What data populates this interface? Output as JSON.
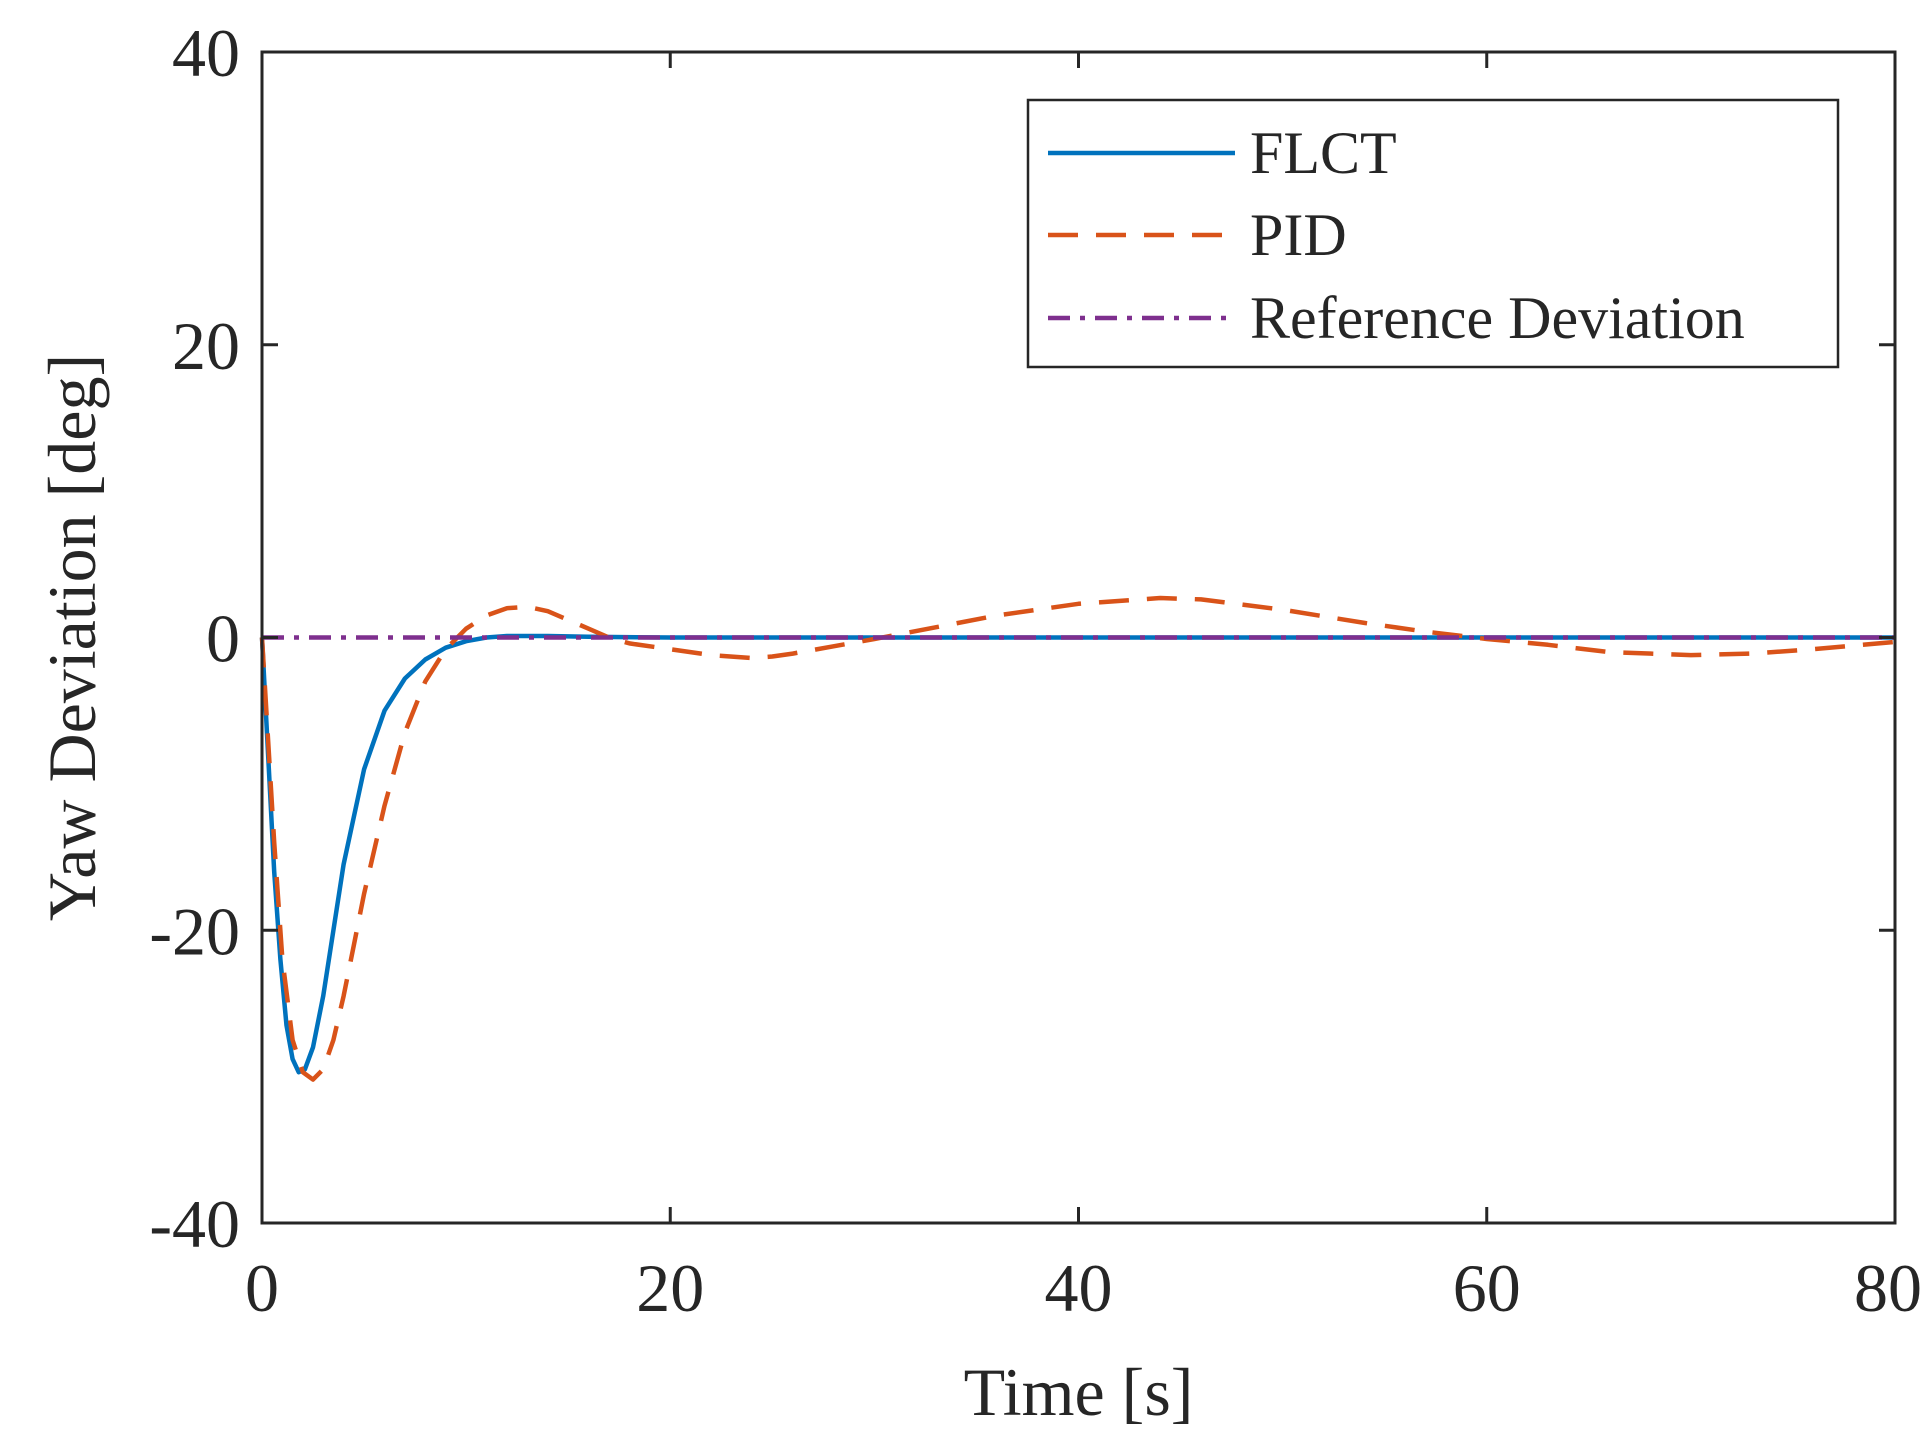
{
  "chart_data": {
    "type": "line",
    "title": "",
    "xlabel": "Time [s]",
    "ylabel": "Yaw Deviation [deg]",
    "xlim": [
      0,
      80
    ],
    "ylim": [
      -40,
      40
    ],
    "xticks": [
      0,
      20,
      40,
      60,
      80
    ],
    "yticks": [
      -40,
      -20,
      0,
      20,
      40
    ],
    "xtick_labels": [
      "0",
      "20",
      "40",
      "60",
      "80"
    ],
    "ytick_labels": [
      "-40",
      "-20",
      "0",
      "20",
      "40"
    ],
    "grid": false,
    "legend_position": "top-right",
    "series": [
      {
        "name": "FLCT",
        "style": "solid",
        "color": "#0072BD",
        "x": [
          0,
          0.3,
          0.6,
          0.9,
          1.2,
          1.5,
          1.8,
          2.1,
          2.5,
          3,
          3.5,
          4,
          5,
          6,
          7,
          8,
          9,
          10,
          11,
          12,
          14,
          16,
          20,
          30,
          40,
          50,
          60,
          70,
          80
        ],
        "y": [
          0,
          -8,
          -16,
          -22,
          -26.5,
          -28.8,
          -29.7,
          -29.5,
          -28,
          -24.5,
          -20,
          -15.5,
          -9,
          -5,
          -2.8,
          -1.5,
          -0.7,
          -0.25,
          0,
          0.1,
          0.1,
          0.05,
          0,
          0,
          0,
          0,
          0,
          0,
          0
        ]
      },
      {
        "name": "PID",
        "style": "dashed",
        "color": "#D95319",
        "x": [
          0,
          0.3,
          0.6,
          1,
          1.5,
          2,
          2.5,
          3,
          3.5,
          4,
          4.5,
          5,
          6,
          7,
          8,
          9,
          10,
          11,
          12,
          13,
          14,
          15,
          16,
          17,
          18,
          20,
          22,
          24,
          25,
          26,
          28,
          30,
          33,
          36,
          40,
          44,
          46,
          50,
          54,
          57,
          60,
          63,
          66,
          70,
          73,
          76,
          80
        ],
        "y": [
          0,
          -7,
          -14,
          -22,
          -27.5,
          -29.7,
          -30.2,
          -29.5,
          -27.5,
          -24.5,
          -21,
          -17.5,
          -11.5,
          -6.5,
          -3,
          -0.8,
          0.6,
          1.5,
          2,
          2.1,
          1.8,
          1.2,
          0.6,
          0,
          -0.4,
          -0.8,
          -1.2,
          -1.4,
          -1.3,
          -1.1,
          -0.6,
          -0.1,
          0.7,
          1.5,
          2.3,
          2.7,
          2.6,
          1.9,
          1,
          0.4,
          -0.1,
          -0.5,
          -1,
          -1.2,
          -1.1,
          -0.8,
          -0.3
        ]
      },
      {
        "name": "Reference Deviation",
        "style": "dashdot",
        "color": "#7E2F8E",
        "x": [
          0,
          80
        ],
        "y": [
          0,
          0
        ]
      }
    ]
  }
}
